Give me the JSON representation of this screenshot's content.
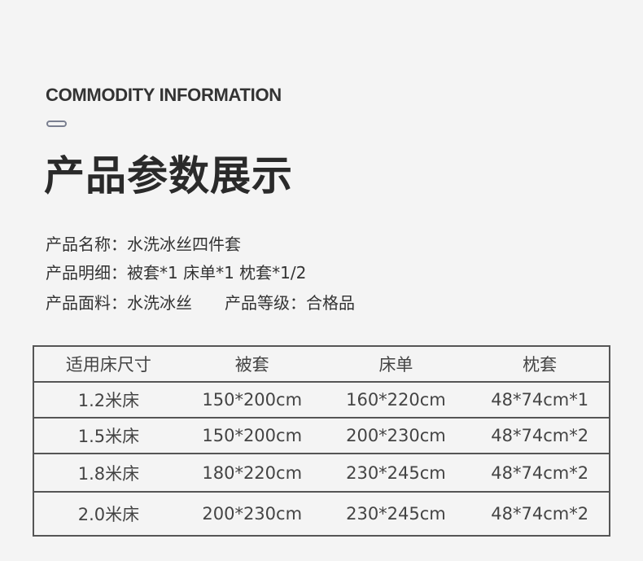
{
  "heading_en": "COMMODITY INFORMATION",
  "heading_cn": "产品参数展示",
  "info": [
    "产品名称：水洗冰丝四件套",
    "产品明细：被套*1 床单*1 枕套*1/2",
    "产品面料：水洗冰丝　　产品等级：合格品"
  ],
  "table": {
    "headers": [
      "适用床尺寸",
      "被套",
      "床单",
      "枕套"
    ],
    "rows": [
      [
        "1.2米床",
        "150*200cm",
        "160*220cm",
        "48*74cm*1"
      ],
      [
        "1.5米床",
        "150*200cm",
        "200*230cm",
        "48*74cm*2"
      ],
      [
        "1.8米床",
        "180*220cm",
        "230*245cm",
        "48*74cm*2"
      ],
      [
        "2.0米床",
        "200*230cm",
        "230*245cm",
        "48*74cm*2"
      ]
    ]
  }
}
